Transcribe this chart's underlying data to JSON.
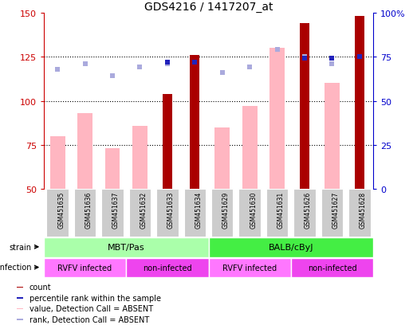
{
  "title": "GDS4216 / 1417207_at",
  "samples": [
    "GSM451635",
    "GSM451636",
    "GSM451637",
    "GSM451632",
    "GSM451633",
    "GSM451634",
    "GSM451629",
    "GSM451630",
    "GSM451631",
    "GSM451626",
    "GSM451627",
    "GSM451628"
  ],
  "count_values": [
    null,
    null,
    null,
    null,
    104,
    126,
    null,
    null,
    null,
    144,
    null,
    148
  ],
  "value_absent": [
    80,
    93,
    73,
    86,
    null,
    null,
    85,
    97,
    130,
    null,
    110,
    null
  ],
  "rank_absent": [
    118,
    121,
    114,
    119,
    121,
    null,
    116,
    119,
    129,
    125,
    121,
    125
  ],
  "percentile_rank": [
    null,
    null,
    null,
    null,
    122,
    122,
    null,
    null,
    null,
    124,
    124,
    125
  ],
  "ylim_left": [
    50,
    150
  ],
  "ylim_right": [
    0,
    100
  ],
  "yticks_left": [
    50,
    75,
    100,
    125,
    150
  ],
  "yticks_right": [
    0,
    25,
    50,
    75,
    100
  ],
  "yticklabels_right": [
    "0",
    "25",
    "50",
    "75",
    "100%"
  ],
  "strain_groups": [
    {
      "label": "MBT/Pas",
      "start": 0,
      "end": 6,
      "color": "#AAFFAA"
    },
    {
      "label": "BALB/cByJ",
      "start": 6,
      "end": 12,
      "color": "#44EE44"
    }
  ],
  "infection_groups": [
    {
      "label": "RVFV infected",
      "start": 0,
      "end": 3,
      "color": "#FF77FF"
    },
    {
      "label": "non-infected",
      "start": 3,
      "end": 6,
      "color": "#EE44EE"
    },
    {
      "label": "RVFV infected",
      "start": 6,
      "end": 9,
      "color": "#FF77FF"
    },
    {
      "label": "non-infected",
      "start": 9,
      "end": 12,
      "color": "#EE44EE"
    }
  ],
  "bar_color_count": "#AA0000",
  "bar_color_absent": "#FFB6C1",
  "dot_color_rank_absent": "#AAAADD",
  "dot_color_percentile": "#2222BB",
  "label_color_left": "#CC0000",
  "label_color_right": "#0000CC",
  "sample_box_color": "#CCCCCC",
  "count_bar_width": 0.35,
  "absent_bar_width": 0.55
}
